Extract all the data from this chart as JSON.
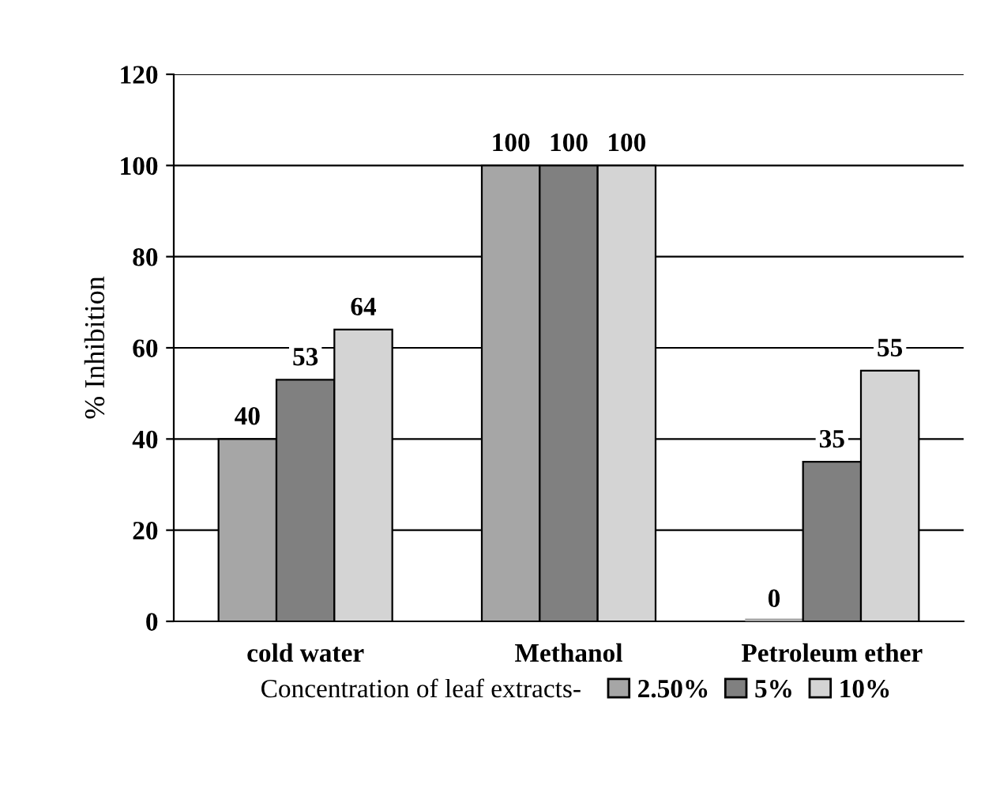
{
  "chart_data": {
    "type": "bar",
    "ylabel": "% Inhibition",
    "legend_title": "Concentration of leaf extracts-",
    "categories": [
      "cold water",
      "Methanol",
      "Petroleum ether"
    ],
    "series": [
      {
        "name": "2.50%",
        "color": "#a6a6a6",
        "values": [
          40,
          100,
          0
        ]
      },
      {
        "name": "5%",
        "color": "#808080",
        "values": [
          53,
          100,
          35
        ]
      },
      {
        "name": "10%",
        "color": "#d4d4d4",
        "values": [
          64,
          100,
          55
        ]
      }
    ],
    "ylim": [
      0,
      120
    ],
    "yticks": [
      0,
      20,
      40,
      60,
      80,
      100,
      120
    ],
    "grid": "y",
    "legend": "bottom",
    "data_labels": true
  }
}
